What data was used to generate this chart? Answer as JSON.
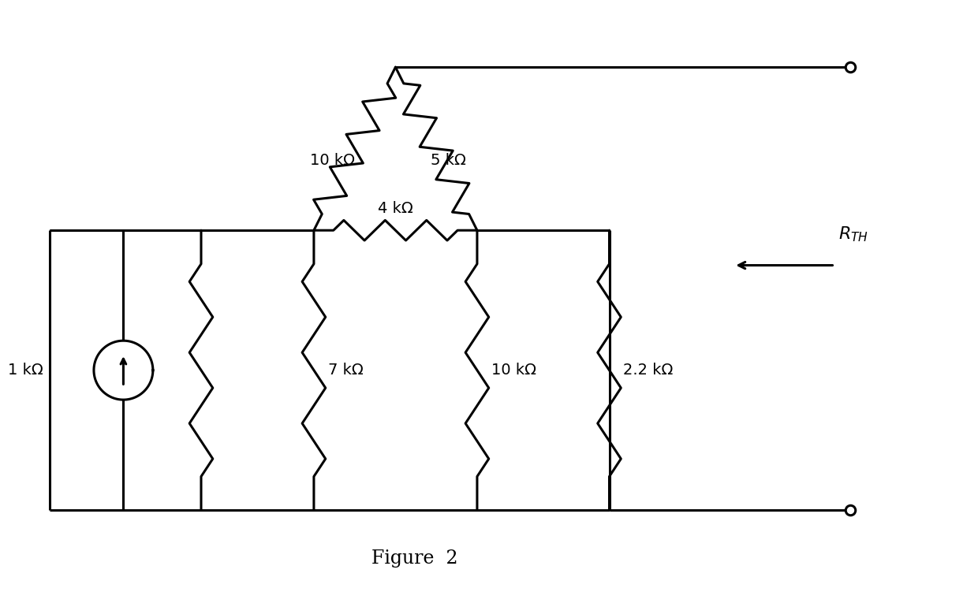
{
  "bg_color": "#ffffff",
  "line_color": "#000000",
  "line_width": 2.2,
  "fig_width": 12.4,
  "fig_height": 7.51,
  "title": "Figure  2",
  "title_fontsize": 17,
  "R_TH_label": "$R_{TH}$",
  "labels": {
    "1kohm_cs": "1 kΩ",
    "r_diag_left": "10 kΩ",
    "r_diag_right": "5 kΩ",
    "r_horiz": "4 kΩ",
    "r_vert_7k": "7 kΩ",
    "r_vert_10k": "10 kΩ",
    "r_vert_22k": "2.2 kΩ"
  }
}
